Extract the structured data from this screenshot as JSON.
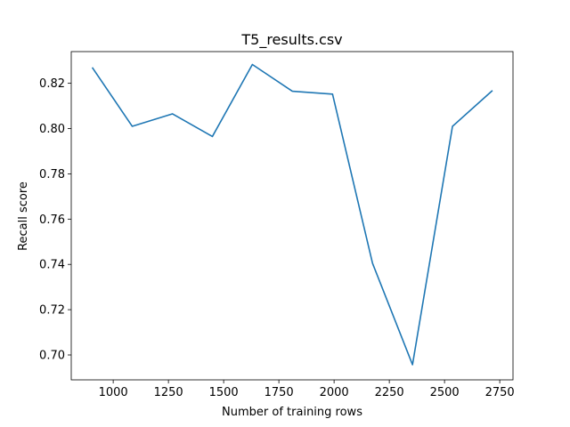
{
  "chart_data": {
    "type": "line",
    "title": "T5_results.csv",
    "xlabel": "Number of training rows",
    "ylabel": "Recall score",
    "xlim": [
      810,
      2810
    ],
    "ylim": [
      0.689,
      0.834
    ],
    "xticks": [
      1000,
      1250,
      1500,
      1750,
      2000,
      2250,
      2500,
      2750
    ],
    "yticks": [
      0.7,
      0.72,
      0.74,
      0.76,
      0.78,
      0.8,
      0.82
    ],
    "grid": false,
    "legend": "none",
    "series": [
      {
        "color": "#1f77b4",
        "x": [
          905,
          1086,
          1268,
          1449,
          1630,
          1811,
          1993,
          2174,
          2355,
          2536,
          2717
        ],
        "y": [
          0.827,
          0.801,
          0.8065,
          0.7965,
          0.8283,
          0.8165,
          0.8152,
          0.7405,
          0.6957,
          0.801,
          0.8168
        ]
      }
    ]
  }
}
